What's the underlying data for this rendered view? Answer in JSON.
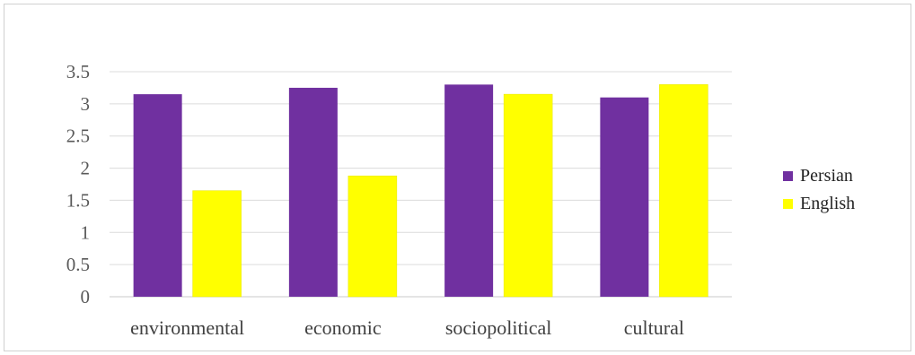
{
  "chart_data": {
    "type": "bar",
    "categories": [
      "environmental",
      "economic",
      "sociopolitical",
      "cultural"
    ],
    "series": [
      {
        "name": "Persian",
        "values": [
          3.15,
          3.25,
          3.3,
          3.1
        ],
        "color": "#7030a0"
      },
      {
        "name": "English",
        "values": [
          1.65,
          1.88,
          3.15,
          3.3
        ],
        "color": "#ffff00"
      }
    ],
    "yticks": [
      "0",
      "0.5",
      "1",
      "1.5",
      "2",
      "2.5",
      "3",
      "3.5"
    ],
    "ylim": [
      0,
      3.5
    ],
    "grid": true,
    "legend_position": "right",
    "title": "",
    "xlabel": "",
    "ylabel": ""
  }
}
